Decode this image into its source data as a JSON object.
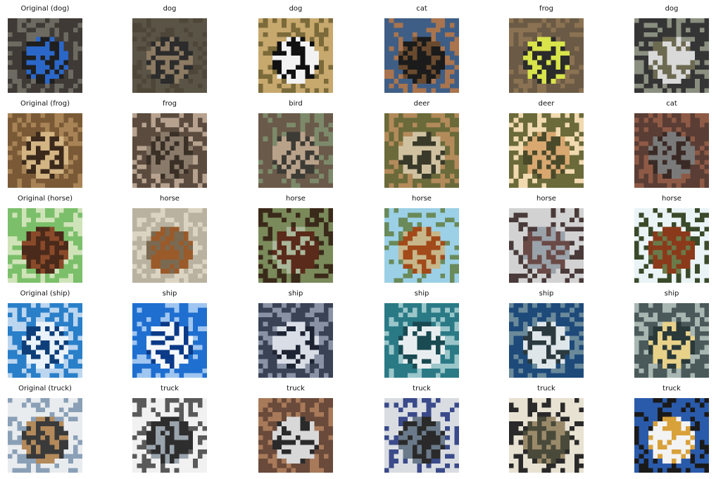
{
  "rows": [
    {
      "query_title": "Original (dog)",
      "matches": [
        "dog",
        "dog",
        "cat",
        "frog",
        "dog"
      ],
      "palettes": [
        [
          "#3f3a36",
          "#2a67c9",
          "#1f1f1f",
          "#6d6a62"
        ],
        [
          "#5a5446",
          "#2c2c2c",
          "#8c7a62",
          "#4e4638"
        ],
        [
          "#c7a86d",
          "#f2f2f2",
          "#111111",
          "#7b6a3a"
        ],
        [
          "#3f5e86",
          "#1b1b1b",
          "#6a4a2e",
          "#a9744e"
        ],
        [
          "#6b5a45",
          "#d8e44a",
          "#2b2b2b",
          "#8a7252"
        ],
        [
          "#353535",
          "#d9d9d9",
          "#6d6a52",
          "#8a8f80"
        ]
      ]
    },
    {
      "query_title": "Original (frog)",
      "matches": [
        "frog",
        "bird",
        "deer",
        "deer",
        "cat"
      ],
      "palettes": [
        [
          "#7a5a36",
          "#d3b483",
          "#3b2a1b",
          "#a88356"
        ],
        [
          "#5a4b3e",
          "#8a7a6a",
          "#3a3026",
          "#b7a28f"
        ],
        [
          "#6a5a4a",
          "#b9a28a",
          "#3d3b35",
          "#7c8a6a"
        ],
        [
          "#6a6a3a",
          "#d0c2a0",
          "#3a3a2a",
          "#b38a5a"
        ],
        [
          "#6b6a3a",
          "#d8a870",
          "#4a4a2a",
          "#f1d9b0"
        ],
        [
          "#5a3d34",
          "#7a7a7a",
          "#3a2a26",
          "#8e5a46"
        ]
      ]
    },
    {
      "query_title": "Original (horse)",
      "matches": [
        "horse",
        "horse",
        "horse",
        "horse",
        "horse"
      ],
      "palettes": [
        [
          "#7bbf6a",
          "#4a2a1a",
          "#8a4a2a",
          "#cfe3b8"
        ],
        [
          "#b9b2a0",
          "#9a5a2a",
          "#7a6a52",
          "#dcd4c2"
        ],
        [
          "#7a8a5a",
          "#5a2a1a",
          "#a9b79a",
          "#3a2a1a"
        ],
        [
          "#9bd0e6",
          "#a24a1a",
          "#c7b68a",
          "#6a8a5a"
        ],
        [
          "#d2d2d2",
          "#6a4a46",
          "#9aa2aa",
          "#4a3a3a"
        ],
        [
          "#eaf3f6",
          "#8a3a1a",
          "#6a7a4a",
          "#3a4a2a"
        ]
      ]
    },
    {
      "query_title": "Original (ship)",
      "matches": [
        "ship",
        "ship",
        "ship",
        "ship",
        "ship"
      ],
      "palettes": [
        [
          "#2a7fc9",
          "#eaf3fb",
          "#0e3f7a",
          "#bcd6ef"
        ],
        [
          "#1f6fd0",
          "#f5f8fb",
          "#0b3a88",
          "#9fc6f0"
        ],
        [
          "#3a4256",
          "#d9dde6",
          "#1e2433",
          "#8a93a6"
        ],
        [
          "#2a7a86",
          "#e8eef0",
          "#1a4a52",
          "#9ac6ca"
        ],
        [
          "#1e4a7a",
          "#dfe6ea",
          "#2b3a3f",
          "#6a8a9a"
        ],
        [
          "#4a5a5a",
          "#e8d28a",
          "#2a3a3a",
          "#a9b7b2"
        ]
      ]
    },
    {
      "query_title": "Original (truck)",
      "matches": [
        "truck",
        "truck",
        "truck",
        "truck",
        "truck"
      ],
      "palettes": [
        [
          "#e9ecef",
          "#3a3a3a",
          "#b48a5a",
          "#8aa0b7"
        ],
        [
          "#f1f1f1",
          "#2e2e2e",
          "#9aa4ad",
          "#5a5a5a"
        ],
        [
          "#6a4a3a",
          "#d8d8d8",
          "#2a2a2a",
          "#a87a5a"
        ],
        [
          "#d9dde2",
          "#2a2a2a",
          "#6a7a8a",
          "#3a4a8a"
        ],
        [
          "#e8e2d2",
          "#4a4a3a",
          "#9a8a6a",
          "#2a2a2a"
        ],
        [
          "#2a5aaa",
          "#f3f3f3",
          "#d8a13a",
          "#1a1a1a"
        ]
      ]
    }
  ]
}
